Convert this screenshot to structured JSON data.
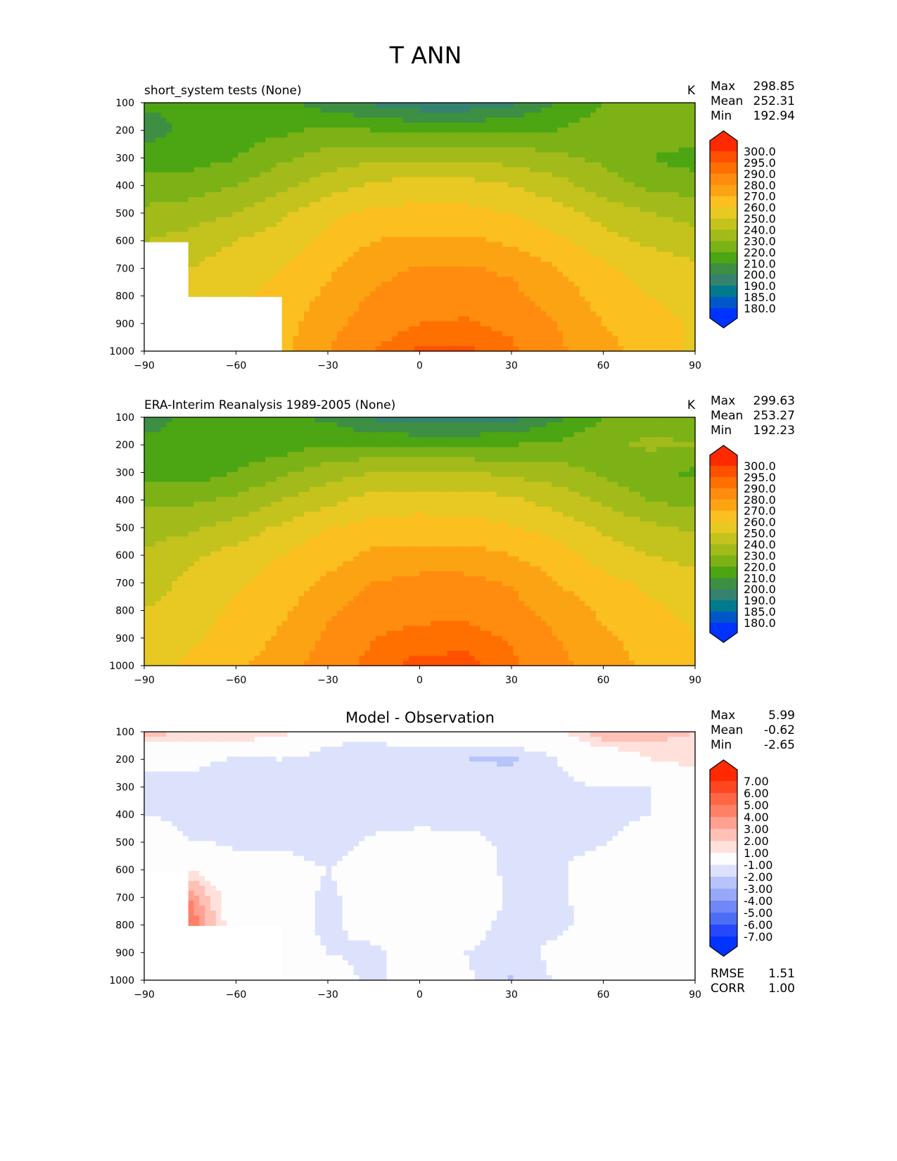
{
  "chart_data": {
    "type": "heatmap",
    "title": "T ANN",
    "x_ticks": [
      -90,
      -60,
      -30,
      0,
      30,
      60,
      90
    ],
    "y_ticks": [
      100,
      200,
      300,
      400,
      500,
      600,
      700,
      800,
      900,
      1000
    ],
    "xlim": [
      -90,
      90
    ],
    "ylim": [
      1000,
      100
    ],
    "grid_lat": [
      -90,
      -75,
      -60,
      -45,
      -30,
      -15,
      0,
      15,
      30,
      45,
      60,
      75,
      90
    ],
    "grid_plev": [
      100,
      200,
      300,
      400,
      500,
      600,
      700,
      800,
      900,
      1000
    ],
    "panels": [
      {
        "name": "model",
        "title": "short_system tests (None)",
        "units": "K",
        "stats": {
          "max_label": "Max",
          "max": "298.85",
          "mean_label": "Mean",
          "mean": "252.31",
          "min_label": "Min",
          "min": "192.94"
        },
        "levels": [
          180,
          185,
          190,
          200,
          210,
          220,
          230,
          240,
          250,
          260,
          270,
          280,
          290,
          295,
          300
        ],
        "level_labels": [
          "300.0",
          "295.0",
          "290.0",
          "280.0",
          "270.0",
          "260.0",
          "250.0",
          "240.0",
          "230.0",
          "220.0",
          "210.0",
          "200.0",
          "190.0",
          "185.0",
          "180.0"
        ],
        "colors": [
          "#0033ff",
          "#0057c8",
          "#007a8e",
          "#358270",
          "#3d8f43",
          "#4ca513",
          "#7cb216",
          "#a2bb1a",
          "#c4c21c",
          "#e8c823",
          "#fbbf1f",
          "#fca314",
          "#ff8c0f",
          "#ff7000",
          "#ff5000",
          "#ff2a00"
        ],
        "values": [
          [
            212,
            212,
            214,
            212,
            205,
            198,
            193,
            193,
            198,
            210,
            220,
            225,
            226
          ],
          [
            205,
            213,
            215,
            218,
            222,
            220,
            218,
            218,
            220,
            220,
            226,
            228,
            228
          ],
          [
            215,
            215,
            220,
            228,
            235,
            238,
            238,
            238,
            236,
            232,
            228,
            220,
            215
          ],
          [
            225,
            225,
            230,
            238,
            245,
            252,
            255,
            254,
            250,
            244,
            235,
            228,
            225
          ],
          [
            232,
            235,
            240,
            248,
            258,
            262,
            263,
            263,
            260,
            254,
            246,
            240,
            236
          ],
          [
            240,
            244,
            250,
            255,
            262,
            270,
            272,
            272,
            268,
            262,
            254,
            248,
            245
          ],
          [
            null,
            250,
            255,
            260,
            268,
            277,
            281,
            281,
            278,
            270,
            262,
            256,
            252
          ],
          [
            null,
            255,
            258,
            264,
            272,
            281,
            285,
            286,
            283,
            275,
            266,
            260,
            256
          ],
          [
            null,
            null,
            null,
            266,
            276,
            286,
            290,
            291,
            288,
            280,
            270,
            265,
            258
          ],
          [
            null,
            null,
            null,
            268,
            280,
            290,
            296,
            296,
            292,
            282,
            273,
            266,
            258
          ]
        ]
      },
      {
        "name": "observation",
        "title": "ERA-Interim Reanalysis 1989-2005 (None)",
        "units": "K",
        "stats": {
          "max_label": "Max",
          "max": "299.63",
          "mean_label": "Mean",
          "mean": "253.27",
          "min_label": "Min",
          "min": "192.23"
        },
        "levels": [
          180,
          185,
          190,
          200,
          210,
          220,
          230,
          240,
          250,
          260,
          270,
          280,
          290,
          295,
          300
        ],
        "level_labels": [
          "300.0",
          "295.0",
          "290.0",
          "280.0",
          "270.0",
          "260.0",
          "250.0",
          "240.0",
          "230.0",
          "220.0",
          "210.0",
          "200.0",
          "190.0",
          "185.0",
          "180.0"
        ],
        "colors": [
          "#0033ff",
          "#0057c8",
          "#007a8e",
          "#358270",
          "#3d8f43",
          "#4ca513",
          "#7cb216",
          "#a2bb1a",
          "#c4c21c",
          "#e8c823",
          "#fbbf1f",
          "#fca314",
          "#ff8c0f",
          "#ff7000",
          "#ff5000",
          "#ff2a00"
        ],
        "values": [
          [
            205,
            213,
            214,
            212,
            208,
            198,
            193,
            193,
            196,
            208,
            220,
            226,
            226
          ],
          [
            213,
            213,
            214,
            215,
            220,
            220,
            219,
            219,
            220,
            222,
            228,
            232,
            230
          ],
          [
            214,
            214,
            220,
            228,
            236,
            240,
            240,
            240,
            238,
            234,
            228,
            222,
            218
          ],
          [
            228,
            228,
            232,
            240,
            247,
            254,
            256,
            255,
            252,
            246,
            238,
            230,
            226
          ],
          [
            235,
            238,
            244,
            252,
            260,
            264,
            264,
            264,
            261,
            256,
            248,
            242,
            238
          ],
          [
            242,
            248,
            254,
            260,
            266,
            272,
            274,
            274,
            270,
            264,
            256,
            250,
            246
          ],
          [
            246,
            252,
            258,
            264,
            272,
            280,
            283,
            283,
            279,
            270,
            263,
            258,
            254
          ],
          [
            250,
            255,
            262,
            268,
            278,
            286,
            288,
            288,
            284,
            276,
            268,
            262,
            258
          ],
          [
            252,
            258,
            264,
            272,
            282,
            290,
            292,
            293,
            289,
            280,
            272,
            266,
            260
          ],
          [
            255,
            262,
            268,
            275,
            285,
            293,
            297,
            297,
            292,
            283,
            274,
            268,
            262
          ]
        ]
      },
      {
        "name": "difference",
        "title": "Model - Observation",
        "units": "",
        "stats": {
          "max_label": "Max",
          "max": "5.99",
          "mean_label": "Mean",
          "mean": "-0.62",
          "min_label": "Min",
          "min": "-2.65"
        },
        "extra_stats": {
          "rmse_label": "RMSE",
          "rmse": "1.51",
          "corr_label": "CORR",
          "corr": "1.00"
        },
        "levels": [
          -7,
          -6,
          -5,
          -4,
          -3,
          -2,
          -1,
          1,
          2,
          3,
          4,
          5,
          6,
          7
        ],
        "level_labels": [
          "7.00",
          "6.00",
          "5.00",
          "4.00",
          "3.00",
          "2.00",
          "1.00",
          "-1.00",
          "-2.00",
          "-3.00",
          "-4.00",
          "-5.00",
          "-6.00",
          "-7.00"
        ],
        "colors": [
          "#0033ff",
          "#2748fa",
          "#4e6df7",
          "#7088f7",
          "#97a8f8",
          "#b7c3fb",
          "#dde2fc",
          "#fdfdfd",
          "#ffe0da",
          "#ffc0b5",
          "#ffa090",
          "#ff8066",
          "#ff6646",
          "#ff4622",
          "#ff2a00"
        ],
        "values": [
          [
            2.5,
            2,
            2,
            1.5,
            -0.5,
            -0.5,
            0.2,
            0.2,
            0.5,
            0.5,
            3,
            2.5,
            2
          ],
          [
            -1,
            -0.5,
            -1.2,
            -1,
            -1.5,
            -1.8,
            -2,
            -2,
            -2.2,
            -1,
            -0.5,
            1,
            1.5
          ],
          [
            -1,
            -1.5,
            -2,
            -1.5,
            -1.2,
            -1.5,
            -1.6,
            -1.6,
            -1.2,
            -1.1,
            -1,
            -1,
            -0.5
          ],
          [
            -1,
            -1.2,
            -1.3,
            -1.2,
            -1.5,
            -1.5,
            -1.5,
            -1.4,
            -1.3,
            -1.2,
            -1.3,
            -1,
            -0.5
          ],
          [
            -0.5,
            -1,
            -1.1,
            -1.2,
            -1.5,
            -0.8,
            -0.5,
            -0.7,
            -1.2,
            -1.3,
            -1.1,
            -0.5,
            -0.5
          ],
          [
            0.5,
            1,
            -0.8,
            -0.5,
            -1,
            -0.5,
            -0.5,
            -0.5,
            -1.2,
            -1.1,
            -0.5,
            -0.5,
            -0.3
          ],
          [
            null,
            4,
            -0.5,
            -0.5,
            -1.2,
            -0.5,
            -0.3,
            -0.5,
            -1.1,
            -1.2,
            -0.5,
            -0.3,
            -0.3
          ],
          [
            null,
            5,
            -0.3,
            -0.5,
            -1.2,
            -0.6,
            -0.3,
            -0.7,
            -1.2,
            -1.2,
            -0.6,
            -0.3,
            -0.3
          ],
          [
            null,
            null,
            null,
            -0.5,
            -1,
            -1.2,
            -0.5,
            -1,
            -1.3,
            -0.8,
            -0.5,
            -0.3,
            -0.3
          ],
          [
            null,
            null,
            null,
            0.5,
            -0.6,
            -1.2,
            -0.5,
            -0.8,
            -2.1,
            -0.8,
            -0.5,
            0.8,
            -0.3
          ]
        ]
      }
    ]
  }
}
